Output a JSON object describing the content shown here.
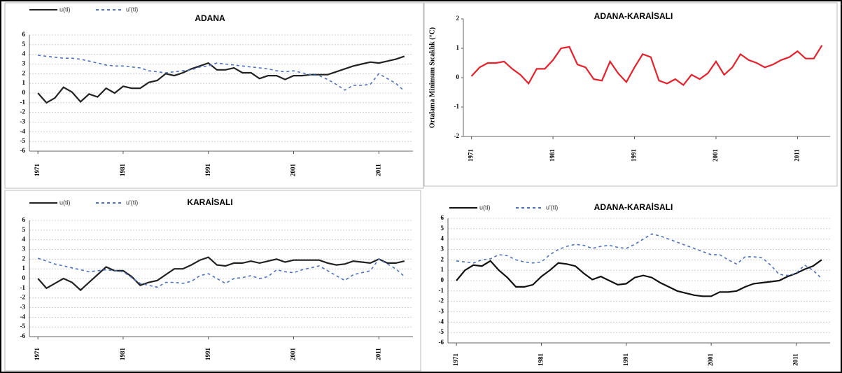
{
  "chart_data": [
    {
      "type": "line",
      "title": "ADANA",
      "x": [
        1971,
        1972,
        1973,
        1974,
        1975,
        1976,
        1977,
        1978,
        1979,
        1980,
        1981,
        1982,
        1983,
        1984,
        1985,
        1986,
        1987,
        1988,
        1989,
        1990,
        1991,
        1992,
        1993,
        1994,
        1995,
        1996,
        1997,
        1998,
        1999,
        2000,
        2001,
        2002,
        2003,
        2004,
        2005,
        2006,
        2007,
        2008,
        2009,
        2010,
        2011,
        2012,
        2013,
        2014
      ],
      "xlim": [
        1970,
        2015
      ],
      "xticks": [
        1971,
        1981,
        1991,
        2001,
        2011
      ],
      "ylim": [
        -6,
        6
      ],
      "yticks": [
        -6,
        -5,
        -4,
        -3,
        -2,
        -1,
        0,
        1,
        2,
        3,
        4,
        5,
        6
      ],
      "grid": true,
      "legend": "top-left",
      "series": [
        {
          "name": "u(ti)",
          "color": "#222222",
          "style": "solid",
          "values": [
            0,
            -1,
            -0.5,
            0.6,
            0.1,
            -0.9,
            -0.1,
            -0.4,
            0.5,
            0,
            0.7,
            0.5,
            0.5,
            1.1,
            1.3,
            2.0,
            1.8,
            2.1,
            2.5,
            2.8,
            3.1,
            2.4,
            2.4,
            2.6,
            2.1,
            2.1,
            1.5,
            1.8,
            1.8,
            1.4,
            1.8,
            1.8,
            1.9,
            1.9,
            1.9,
            2.2,
            2.5,
            2.8,
            3.0,
            3.2,
            3.1,
            3.3,
            3.5,
            3.8
          ]
        },
        {
          "name": "u'(ti)",
          "color": "#4a72c4",
          "style": "dashed",
          "values": [
            3.9,
            3.8,
            3.7,
            3.6,
            3.6,
            3.5,
            3.3,
            3.1,
            2.9,
            2.8,
            2.8,
            2.7,
            2.6,
            2.3,
            2.2,
            2.1,
            2.2,
            2.3,
            2.4,
            2.7,
            2.8,
            3.1,
            3.0,
            2.9,
            2.8,
            2.7,
            2.6,
            2.5,
            2.3,
            2.2,
            2.3,
            2.1,
            1.9,
            1.8,
            1.4,
            0.9,
            0.3,
            0.8,
            0.8,
            0.9,
            2.0,
            1.5,
            1.0,
            0.2
          ]
        }
      ]
    },
    {
      "type": "line",
      "title": "ADANA-KARAİSALI",
      "y_label": "Ortalama Minimum Sıcaklık (°C)",
      "x": [
        1971,
        1972,
        1973,
        1974,
        1975,
        1976,
        1977,
        1978,
        1979,
        1980,
        1981,
        1982,
        1983,
        1984,
        1985,
        1986,
        1987,
        1988,
        1989,
        1990,
        1991,
        1992,
        1993,
        1994,
        1995,
        1996,
        1997,
        1998,
        1999,
        2000,
        2001,
        2002,
        2003,
        2004,
        2005,
        2006,
        2007,
        2008,
        2009,
        2010,
        2011,
        2012,
        2013,
        2014
      ],
      "xlim": [
        1970,
        2015
      ],
      "xticks": [
        1971,
        1981,
        1991,
        2001,
        2011
      ],
      "ylim": [
        -2,
        2
      ],
      "yticks": [
        -2,
        -1,
        0,
        1,
        2
      ],
      "grid": false,
      "series": [
        {
          "color": "#e8202a",
          "style": "solid",
          "values": [
            0.05,
            0.35,
            0.5,
            0.5,
            0.55,
            0.3,
            0.1,
            -0.2,
            0.3,
            0.3,
            0.6,
            1.0,
            1.05,
            0.45,
            0.35,
            -0.05,
            -0.1,
            0.55,
            0.15,
            -0.15,
            0.35,
            0.8,
            0.7,
            -0.1,
            -0.2,
            -0.05,
            -0.25,
            0.1,
            -0.05,
            0.15,
            0.55,
            0.1,
            0.35,
            0.8,
            0.6,
            0.5,
            0.35,
            0.45,
            0.6,
            0.7,
            0.9,
            0.65,
            0.65,
            1.1
          ]
        }
      ]
    },
    {
      "type": "line",
      "title": "KARAİSALI",
      "x": [
        1971,
        1972,
        1973,
        1974,
        1975,
        1976,
        1977,
        1978,
        1979,
        1980,
        1981,
        1982,
        1983,
        1984,
        1985,
        1986,
        1987,
        1988,
        1989,
        1990,
        1991,
        1992,
        1993,
        1994,
        1995,
        1996,
        1997,
        1998,
        1999,
        2000,
        2001,
        2002,
        2003,
        2004,
        2005,
        2006,
        2007,
        2008,
        2009,
        2010,
        2011,
        2012,
        2013,
        2014
      ],
      "xlim": [
        1970,
        2015
      ],
      "xticks": [
        1971,
        1981,
        1991,
        2001,
        2011
      ],
      "ylim": [
        -6,
        6
      ],
      "yticks": [
        -6,
        -5,
        -4,
        -3,
        -2,
        -1,
        0,
        1,
        2,
        3,
        4,
        5,
        6
      ],
      "grid": true,
      "legend": "top-left",
      "series": [
        {
          "name": "u(ti)",
          "color": "#222222",
          "style": "solid",
          "values": [
            0,
            -1,
            -0.5,
            0,
            -0.4,
            -1.2,
            -0.4,
            0.4,
            1.2,
            0.8,
            0.8,
            0.2,
            -0.7,
            -0.4,
            -0.2,
            0.4,
            1.0,
            1.0,
            1.4,
            1.9,
            2.2,
            1.4,
            1.3,
            1.6,
            1.6,
            1.8,
            1.6,
            1.8,
            2.0,
            1.7,
            1.9,
            1.9,
            1.9,
            1.9,
            1.6,
            1.4,
            1.5,
            1.8,
            1.7,
            1.6,
            2.0,
            1.6,
            1.6,
            1.8
          ]
        },
        {
          "name": "u'(ti)",
          "color": "#4a72c4",
          "style": "dashed",
          "values": [
            2.1,
            1.8,
            1.5,
            1.3,
            1.1,
            0.9,
            0.7,
            0.8,
            0.9,
            0.8,
            0.7,
            0.1,
            -0.5,
            -0.7,
            -0.9,
            -0.4,
            -0.4,
            -0.5,
            -0.3,
            0.3,
            0.5,
            0,
            -0.5,
            0,
            0.1,
            0.3,
            0,
            0.2,
            0.9,
            0.7,
            0.6,
            0.9,
            1.1,
            1.3,
            0.8,
            0.3,
            -0.2,
            0.4,
            0.6,
            0.8,
            2.0,
            1.5,
            1.0,
            0.2
          ]
        }
      ]
    },
    {
      "type": "line",
      "title": "ADANA-KARAİSALI",
      "x": [
        1971,
        1972,
        1973,
        1974,
        1975,
        1976,
        1977,
        1978,
        1979,
        1980,
        1981,
        1982,
        1983,
        1984,
        1985,
        1986,
        1987,
        1988,
        1989,
        1990,
        1991,
        1992,
        1993,
        1994,
        1995,
        1996,
        1997,
        1998,
        1999,
        2000,
        2001,
        2002,
        2003,
        2004,
        2005,
        2006,
        2007,
        2008,
        2009,
        2010,
        2011,
        2012,
        2013,
        2014
      ],
      "xlim": [
        1970,
        2015
      ],
      "xticks": [
        1971,
        1981,
        1991,
        2001,
        2011
      ],
      "ylim": [
        -6,
        6
      ],
      "yticks": [
        -6,
        -5,
        -4,
        -3,
        -2,
        -1,
        0,
        1,
        2,
        3,
        4,
        5,
        6
      ],
      "grid": true,
      "legend": "top-left",
      "series": [
        {
          "name": "u(ti)",
          "color": "#111111",
          "style": "solid",
          "values": [
            0,
            1.0,
            1.5,
            1.4,
            1.9,
            1.0,
            0.3,
            -0.6,
            -0.6,
            -0.4,
            0.4,
            1.0,
            1.7,
            1.6,
            1.4,
            0.7,
            0.1,
            0.4,
            0,
            -0.4,
            -0.3,
            0.3,
            0.5,
            0.3,
            -0.2,
            -0.6,
            -1.0,
            -1.2,
            -1.4,
            -1.5,
            -1.5,
            -1.1,
            -1.1,
            -1.0,
            -0.6,
            -0.3,
            -0.2,
            -0.1,
            0,
            0.4,
            0.7,
            1.1,
            1.4,
            2.0
          ]
        },
        {
          "name": "u'(ti)",
          "color": "#4a72c4",
          "style": "dashed",
          "values": [
            1.9,
            1.8,
            1.7,
            2.0,
            2.1,
            2.5,
            2.4,
            2.0,
            1.8,
            1.7,
            1.8,
            2.5,
            3.0,
            3.3,
            3.5,
            3.4,
            3.1,
            3.3,
            3.4,
            3.2,
            3.1,
            3.5,
            4.0,
            4.5,
            4.3,
            4.0,
            3.7,
            3.4,
            3.1,
            2.8,
            2.5,
            2.5,
            2.0,
            1.6,
            2.3,
            2.3,
            2.2,
            1.5,
            0.6,
            0.5,
            0.7,
            1.5,
            1.0,
            0.2
          ]
        }
      ]
    }
  ]
}
